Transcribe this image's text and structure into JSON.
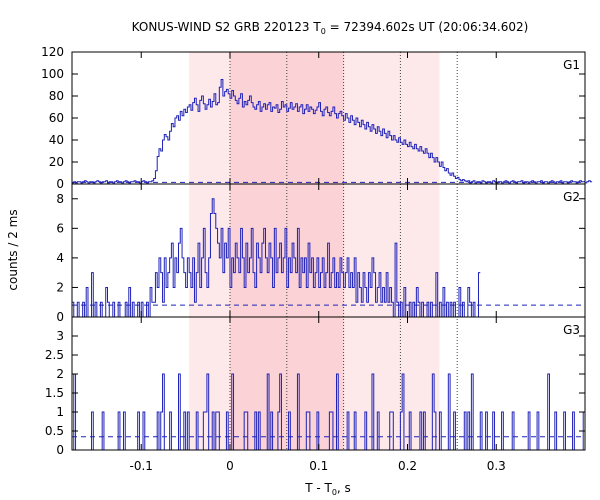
{
  "chart_data": {
    "type": "line",
    "title": {
      "main": "KONUS-WIND S2 GRB 220123 T",
      "sub": "0",
      "rest": " = 72394.602s UT (20:06:34.602)"
    },
    "xlabel": {
      "main": "T - T",
      "sub": "0",
      "rest": ", s"
    },
    "ylabel": "counts / 2 ms",
    "xlim": [
      -0.178,
      0.4
    ],
    "x_ticks": [
      -0.1,
      0,
      0.1,
      0.2,
      0.3
    ],
    "x_tick_labels": [
      "-0.1",
      "0",
      "0.1",
      "0.2",
      "0.3"
    ],
    "shaded_regions": [
      {
        "x0": -0.046,
        "x1": 0.236,
        "color": "#fde8ea"
      },
      {
        "x0": 0.0,
        "x1": 0.128,
        "color": "#fbd2d6"
      }
    ],
    "vertical_lines_x": [
      0.0,
      0.064,
      0.128,
      0.192,
      0.256
    ],
    "line_color": "#1f22b8",
    "panels": [
      {
        "name": "G1",
        "ylim": [
          0,
          120
        ],
        "y_ticks": [
          0,
          20,
          40,
          60,
          80,
          100,
          120
        ],
        "background": 1.5,
        "step": 0.002,
        "x_start": -0.178,
        "values": [
          1,
          2,
          1,
          2,
          2,
          1,
          2,
          3,
          2,
          1,
          2,
          2,
          1,
          2,
          3,
          2,
          1,
          2,
          2,
          3,
          1,
          2,
          2,
          1,
          2,
          3,
          2,
          2,
          1,
          2,
          3,
          2,
          1,
          2,
          2,
          3,
          2,
          2,
          1,
          2,
          3,
          2,
          1,
          2,
          2,
          3,
          5,
          12,
          25,
          32,
          30,
          40,
          45,
          43,
          40,
          48,
          55,
          52,
          60,
          62,
          58,
          66,
          62,
          68,
          65,
          70,
          72,
          67,
          74,
          78,
          72,
          66,
          76,
          80,
          73,
          68,
          72,
          77,
          70,
          75,
          82,
          72,
          74,
          88,
          95,
          80,
          84,
          86,
          82,
          78,
          85,
          80,
          76,
          73,
          78,
          82,
          70,
          75,
          72,
          76,
          80,
          74,
          70,
          68,
          72,
          75,
          66,
          70,
          73,
          68,
          72,
          74,
          66,
          70,
          69,
          72,
          65,
          68,
          75,
          70,
          72,
          66,
          69,
          74,
          68,
          70,
          73,
          66,
          70,
          72,
          64,
          68,
          72,
          66,
          70,
          68,
          64,
          67,
          70,
          74,
          66,
          62,
          68,
          70,
          65,
          62,
          66,
          70,
          64,
          60,
          64,
          66,
          62,
          58,
          64,
          60,
          56,
          62,
          58,
          54,
          60,
          56,
          52,
          58,
          54,
          50,
          56,
          52,
          48,
          54,
          50,
          46,
          52,
          48,
          44,
          50,
          46,
          42,
          48,
          44,
          40,
          44,
          40,
          38,
          42,
          38,
          36,
          40,
          36,
          34,
          38,
          34,
          32,
          36,
          32,
          30,
          34,
          30,
          28,
          32,
          28,
          24,
          28,
          24,
          20,
          24,
          20,
          16,
          20,
          15,
          12,
          14,
          10,
          8,
          10,
          7,
          5,
          6,
          4,
          3,
          4,
          3,
          2,
          3,
          1,
          2,
          3,
          1,
          2,
          2,
          1,
          3,
          2,
          1,
          2,
          2,
          1,
          3,
          2,
          1,
          2,
          2,
          1,
          2,
          3,
          2,
          1,
          2,
          3,
          2,
          1,
          2,
          2,
          3,
          1,
          2,
          2,
          1,
          2,
          3,
          2,
          1,
          2,
          2,
          3,
          1,
          2,
          2,
          1,
          2,
          3,
          2,
          1,
          2,
          2,
          3,
          1,
          2,
          2,
          1,
          2,
          3,
          2,
          2,
          1,
          2,
          3,
          2,
          2,
          1,
          2,
          3,
          2
        ]
      },
      {
        "name": "G2",
        "ylim": [
          0,
          9
        ],
        "y_ticks": [
          0,
          2,
          4,
          6,
          8
        ],
        "background": 0.8,
        "step": 0.002,
        "x_start": -0.178,
        "values": [
          1,
          0,
          0,
          1,
          0,
          0,
          1,
          0,
          2,
          0,
          0,
          3,
          0,
          1,
          0,
          0,
          1,
          0,
          0,
          2,
          1,
          0,
          0,
          1,
          0,
          0,
          1,
          0,
          0,
          0,
          1,
          0,
          2,
          0,
          1,
          0,
          0,
          1,
          0,
          1,
          0,
          0,
          1,
          0,
          2,
          1,
          1,
          3,
          2,
          4,
          3,
          1,
          4,
          2,
          3,
          4,
          5,
          2,
          4,
          3,
          5,
          6,
          4,
          3,
          2,
          4,
          3,
          2,
          4,
          1,
          3,
          5,
          2,
          4,
          6,
          3,
          2,
          4,
          7,
          8,
          7,
          6,
          5,
          4,
          6,
          3,
          5,
          4,
          6,
          2,
          4,
          3,
          5,
          4,
          3,
          6,
          4,
          2,
          5,
          3,
          4,
          6,
          3,
          2,
          5,
          4,
          3,
          5,
          6,
          4,
          3,
          5,
          4,
          2,
          6,
          3,
          4,
          5,
          3,
          4,
          6,
          2,
          4,
          3,
          5,
          4,
          3,
          6,
          2,
          4,
          3,
          4,
          2,
          5,
          3,
          4,
          2,
          3,
          4,
          2,
          3,
          4,
          2,
          3,
          5,
          2,
          3,
          4,
          2,
          3,
          2,
          4,
          3,
          2,
          3,
          4,
          2,
          3,
          2,
          4,
          1,
          3,
          2,
          1,
          3,
          2,
          1,
          3,
          2,
          4,
          3,
          1,
          2,
          3,
          1,
          2,
          1,
          3,
          1,
          2,
          1,
          0,
          5,
          1,
          0,
          1,
          0,
          2,
          0,
          0,
          1,
          0,
          1,
          0,
          2,
          1,
          0,
          1,
          0,
          0,
          1,
          0,
          1,
          0,
          0,
          3,
          0,
          1,
          0,
          2,
          0,
          1,
          0,
          1,
          0,
          1,
          0,
          0,
          2,
          0,
          1,
          0,
          0,
          2,
          1,
          0,
          1,
          0,
          0,
          3
        ]
      },
      {
        "name": "G3",
        "ylim": [
          0,
          3.5
        ],
        "y_ticks": [
          0,
          0.5,
          1,
          1.5,
          2,
          2.5,
          3
        ],
        "y_tick_labels": [
          "0",
          "0.5",
          "1",
          "1.5",
          "2",
          "2.5",
          "3"
        ],
        "background": 0.35,
        "step": 0.002,
        "x_start": -0.178,
        "values": [
          0,
          2,
          0,
          0,
          0,
          0,
          0,
          0,
          0,
          0,
          0,
          1,
          0,
          0,
          0,
          0,
          0,
          1,
          0,
          0,
          0,
          0,
          0,
          0,
          0,
          0,
          1,
          0,
          0,
          1,
          0,
          0,
          0,
          0,
          0,
          0,
          0,
          1,
          0,
          0,
          1,
          0,
          0,
          0,
          0,
          0,
          0,
          0,
          1,
          0,
          1,
          2,
          0,
          0,
          0,
          1,
          0,
          0,
          0,
          0,
          2,
          0,
          0,
          1,
          0,
          1,
          0,
          0,
          0,
          0,
          1,
          0,
          0,
          0,
          1,
          1,
          2,
          0,
          0,
          1,
          0,
          1,
          1,
          0,
          0,
          0,
          0,
          1,
          0,
          0,
          2,
          0,
          0,
          0,
          0,
          0,
          0,
          1,
          1,
          0,
          0,
          0,
          0,
          1,
          0,
          1,
          0,
          0,
          0,
          0,
          2,
          0,
          1,
          0,
          0,
          0,
          1,
          2,
          0,
          0,
          0,
          0,
          1,
          0,
          0,
          0,
          0,
          2,
          0,
          0,
          0,
          0,
          1,
          1,
          0,
          0,
          0,
          0,
          1,
          0,
          0,
          0,
          0,
          0,
          0,
          1,
          1,
          0,
          0,
          2,
          0,
          0,
          0,
          0,
          0,
          1,
          0,
          0,
          0,
          1,
          0,
          0,
          0,
          0,
          0,
          1,
          0,
          0,
          0,
          2,
          0,
          0,
          1,
          0,
          0,
          0,
          0,
          0,
          0,
          1,
          1,
          0,
          0,
          0,
          0,
          1,
          2,
          0,
          0,
          0,
          1,
          0,
          0,
          0,
          0,
          0,
          1,
          0,
          1,
          0,
          0,
          0,
          0,
          2,
          1,
          0,
          0,
          1,
          0,
          0,
          0,
          0,
          2,
          0,
          0,
          1,
          0,
          0,
          0,
          0,
          0,
          1,
          0,
          1,
          0,
          2,
          0,
          0,
          0,
          0,
          1,
          0,
          0,
          1,
          0,
          0,
          0,
          1,
          0,
          0,
          0,
          0,
          1,
          0,
          0,
          0,
          0,
          0,
          1,
          0,
          0,
          0,
          0,
          0,
          0,
          0,
          0,
          1,
          0,
          0,
          0,
          0,
          1,
          0,
          0,
          0,
          0,
          0,
          2,
          0,
          0,
          0,
          1,
          0,
          0,
          0,
          0,
          1,
          0,
          0,
          0,
          0,
          1,
          0,
          0,
          0,
          0,
          0,
          1
        ]
      }
    ]
  }
}
